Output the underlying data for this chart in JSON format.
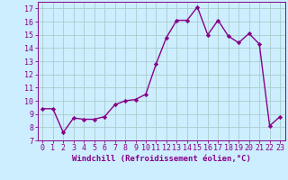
{
  "x": [
    0,
    1,
    2,
    3,
    4,
    5,
    6,
    7,
    8,
    9,
    10,
    11,
    12,
    13,
    14,
    15,
    16,
    17,
    18,
    19,
    20,
    21,
    22,
    23
  ],
  "y": [
    9.4,
    9.4,
    7.6,
    8.7,
    8.6,
    8.6,
    8.8,
    9.7,
    10.0,
    10.1,
    10.5,
    12.8,
    14.8,
    16.1,
    16.1,
    17.1,
    15.0,
    16.1,
    14.9,
    14.4,
    15.1,
    14.3,
    8.1,
    8.8
  ],
  "xlim": [
    -0.5,
    23.5
  ],
  "ylim": [
    7,
    17.5
  ],
  "yticks": [
    7,
    8,
    9,
    10,
    11,
    12,
    13,
    14,
    15,
    16,
    17
  ],
  "xticks": [
    0,
    1,
    2,
    3,
    4,
    5,
    6,
    7,
    8,
    9,
    10,
    11,
    12,
    13,
    14,
    15,
    16,
    17,
    18,
    19,
    20,
    21,
    22,
    23
  ],
  "line_color": "#880088",
  "marker": "D",
  "marker_size": 2.2,
  "bg_color": "#cceeff",
  "grid_color": "#aacccc",
  "xlabel": "Windchill (Refroidissement éolien,°C)",
  "xlabel_fontsize": 6.5,
  "tick_fontsize": 6.0,
  "line_width": 1.0
}
